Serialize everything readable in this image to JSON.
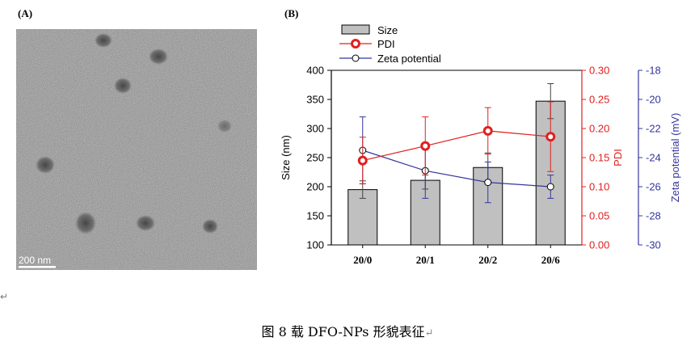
{
  "panels": {
    "a": {
      "label": "(A)",
      "scale_bar": "200 nm"
    },
    "b": {
      "label": "(B)"
    }
  },
  "caption": {
    "text": "图 8  载 DFO-NPs 形貌表征",
    "end_mark": "↵"
  },
  "left_mark": "↵",
  "colors": {
    "bar_fill": "#c0c0c0",
    "pdi": "#e02020",
    "zeta": "#3535a0",
    "axis": "#000000"
  },
  "chart_data": {
    "type": "bar",
    "categories": [
      "20/0",
      "20/1",
      "20/2",
      "20/6"
    ],
    "series": [
      {
        "name": "Size",
        "kind": "bar",
        "axis": "left",
        "values": [
          195,
          211,
          233,
          347
        ],
        "errors": [
          15,
          15,
          25,
          30
        ]
      },
      {
        "name": "PDI",
        "kind": "line",
        "axis": "right1",
        "values": [
          0.145,
          0.17,
          0.196,
          0.186
        ],
        "errors": [
          0.04,
          0.05,
          0.04,
          0.06
        ]
      },
      {
        "name": "Zeta potential",
        "kind": "line",
        "axis": "right2",
        "values": [
          -23.5,
          -24.9,
          -25.7,
          -26.0
        ],
        "errors": [
          2.3,
          1.9,
          1.4,
          0.8
        ]
      }
    ],
    "axes": {
      "left": {
        "label": "Size (nm)",
        "ylim": [
          100,
          400
        ],
        "ticks": [
          "100",
          "150",
          "200",
          "250",
          "300",
          "350",
          "400"
        ]
      },
      "right1": {
        "label": "PDI",
        "ylim": [
          0,
          0.3
        ],
        "ticks": [
          "0.00",
          "0.05",
          "0.10",
          "0.15",
          "0.20",
          "0.25",
          "0.30"
        ]
      },
      "right2": {
        "label": "Zeta potential (mV)",
        "ylim": [
          -30,
          -18
        ],
        "ticks": [
          "-30",
          "-28",
          "-26",
          "-24",
          "-22",
          "-20",
          "-18"
        ]
      }
    },
    "legend": {
      "position": "top-left",
      "entries": [
        "Size",
        "PDI",
        "Zeta potential"
      ]
    },
    "grid": false
  }
}
